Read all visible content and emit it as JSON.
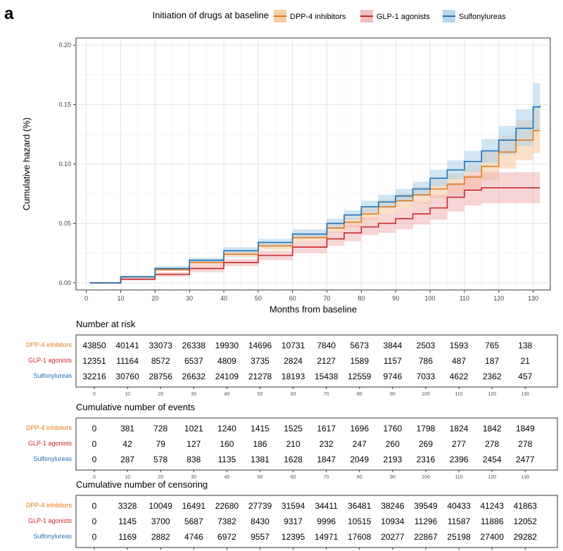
{
  "panel_label": "a",
  "legend": {
    "title": "Initiation of drugs at baseline",
    "items": [
      {
        "name": "DPP-4 inhibitors",
        "line": "#e07b1a",
        "band": "#f5c79a"
      },
      {
        "name": "GLP-1 agonists",
        "line": "#c8282b",
        "band": "#f0b3b3"
      },
      {
        "name": "Sulfonylureas",
        "line": "#1f6fb4",
        "band": "#a9cfeb"
      }
    ]
  },
  "chart_data": {
    "type": "line",
    "xlabel": "Months from baseline",
    "ylabel": "Cumulative hazard (%)",
    "xlim": [
      -3,
      135
    ],
    "ylim": [
      -0.006,
      0.206
    ],
    "x_ticks": [
      0,
      10,
      20,
      30,
      40,
      50,
      60,
      70,
      80,
      90,
      100,
      110,
      120,
      130
    ],
    "y_ticks": [
      0.0,
      0.05,
      0.1,
      0.15,
      0.2
    ],
    "y_tick_labels": [
      "0.00",
      "0.05",
      "0.10",
      "0.15",
      "0.20"
    ],
    "grid": true,
    "series": [
      {
        "name": "DPP-4 inhibitors",
        "color": "#e07b1a",
        "band_color": "#f5c79a",
        "x": [
          1,
          10,
          20,
          30,
          40,
          50,
          60,
          70,
          75,
          80,
          85,
          90,
          95,
          100,
          105,
          110,
          115,
          120,
          125,
          130,
          132
        ],
        "y": [
          0,
          0.005,
          0.011,
          0.017,
          0.024,
          0.031,
          0.038,
          0.046,
          0.051,
          0.058,
          0.064,
          0.069,
          0.074,
          0.079,
          0.083,
          0.089,
          0.098,
          0.11,
          0.12,
          0.128,
          0.128
        ],
        "lower": [
          0,
          0.004,
          0.01,
          0.015,
          0.022,
          0.028,
          0.035,
          0.042,
          0.047,
          0.053,
          0.058,
          0.063,
          0.067,
          0.071,
          0.074,
          0.079,
          0.086,
          0.096,
          0.103,
          0.109,
          0.109
        ],
        "upper": [
          0,
          0.006,
          0.012,
          0.019,
          0.026,
          0.034,
          0.041,
          0.05,
          0.055,
          0.063,
          0.07,
          0.075,
          0.081,
          0.087,
          0.092,
          0.099,
          0.11,
          0.124,
          0.137,
          0.147,
          0.147
        ]
      },
      {
        "name": "GLP-1 agonists",
        "color": "#c8282b",
        "band_color": "#f0b3b3",
        "x": [
          1,
          10,
          20,
          30,
          40,
          50,
          60,
          70,
          75,
          80,
          85,
          90,
          95,
          100,
          105,
          110,
          115,
          120,
          125,
          130,
          132
        ],
        "y": [
          0,
          0.003,
          0.007,
          0.012,
          0.017,
          0.023,
          0.03,
          0.037,
          0.042,
          0.047,
          0.05,
          0.054,
          0.058,
          0.063,
          0.072,
          0.078,
          0.08,
          0.08,
          0.08,
          0.08,
          0.08
        ],
        "lower": [
          0,
          0.002,
          0.005,
          0.009,
          0.014,
          0.019,
          0.025,
          0.031,
          0.035,
          0.04,
          0.042,
          0.045,
          0.049,
          0.053,
          0.06,
          0.065,
          0.067,
          0.067,
          0.067,
          0.067,
          0.067
        ],
        "upper": [
          0,
          0.004,
          0.009,
          0.015,
          0.02,
          0.027,
          0.035,
          0.043,
          0.049,
          0.055,
          0.058,
          0.063,
          0.068,
          0.074,
          0.084,
          0.091,
          0.093,
          0.093,
          0.093,
          0.093,
          0.093
        ]
      },
      {
        "name": "Sulfonylureas",
        "color": "#1f6fb4",
        "band_color": "#a9cfeb",
        "x": [
          1,
          10,
          20,
          30,
          40,
          50,
          60,
          70,
          75,
          80,
          85,
          90,
          95,
          100,
          105,
          110,
          115,
          120,
          125,
          130,
          132
        ],
        "y": [
          0,
          0.005,
          0.012,
          0.019,
          0.027,
          0.034,
          0.041,
          0.05,
          0.057,
          0.064,
          0.068,
          0.073,
          0.079,
          0.088,
          0.095,
          0.102,
          0.111,
          0.12,
          0.13,
          0.148,
          0.149
        ],
        "lower": [
          0,
          0.004,
          0.011,
          0.017,
          0.025,
          0.031,
          0.038,
          0.046,
          0.053,
          0.059,
          0.063,
          0.068,
          0.073,
          0.081,
          0.087,
          0.093,
          0.101,
          0.108,
          0.115,
          0.128,
          0.128
        ],
        "upper": [
          0,
          0.006,
          0.014,
          0.021,
          0.03,
          0.037,
          0.045,
          0.054,
          0.061,
          0.069,
          0.074,
          0.079,
          0.085,
          0.095,
          0.103,
          0.111,
          0.121,
          0.132,
          0.146,
          0.168,
          0.175
        ]
      }
    ]
  },
  "tables": [
    {
      "title": "Number at risk",
      "rows": [
        {
          "label": "DPP-4 inhibitors",
          "color": "#e07b1a",
          "values": [
            "43850",
            "40141",
            "33073",
            "26338",
            "19930",
            "14696",
            "10731",
            "7840",
            "5673",
            "3844",
            "2503",
            "1593",
            "765",
            "138"
          ]
        },
        {
          "label": "GLP-1 agonists",
          "color": "#c8282b",
          "values": [
            "12351",
            "11164",
            "8572",
            "6537",
            "4809",
            "3735",
            "2824",
            "2127",
            "1589",
            "1157",
            "786",
            "487",
            "187",
            "21"
          ]
        },
        {
          "label": "Sulfonylureas",
          "color": "#1f6fb4",
          "values": [
            "32216",
            "30760",
            "28756",
            "26632",
            "24109",
            "21278",
            "18193",
            "15438",
            "12559",
            "9746",
            "7033",
            "4622",
            "2362",
            "457"
          ]
        }
      ]
    },
    {
      "title": "Cumulative number of events",
      "rows": [
        {
          "label": "DPP-4 inhibitors",
          "color": "#e07b1a",
          "values": [
            "0",
            "381",
            "728",
            "1021",
            "1240",
            "1415",
            "1525",
            "1617",
            "1696",
            "1760",
            "1798",
            "1824",
            "1842",
            "1849"
          ]
        },
        {
          "label": "GLP-1 agonists",
          "color": "#c8282b",
          "values": [
            "0",
            "42",
            "79",
            "127",
            "160",
            "186",
            "210",
            "232",
            "247",
            "260",
            "269",
            "277",
            "278",
            "278"
          ]
        },
        {
          "label": "Sulfonylureas",
          "color": "#1f6fb4",
          "values": [
            "0",
            "287",
            "578",
            "838",
            "1135",
            "1381",
            "1628",
            "1847",
            "2049",
            "2193",
            "2316",
            "2396",
            "2454",
            "2477"
          ]
        }
      ]
    },
    {
      "title": "Cumulative number of censoring",
      "rows": [
        {
          "label": "DPP-4 inhibitors",
          "color": "#e07b1a",
          "values": [
            "0",
            "3328",
            "10049",
            "16491",
            "22680",
            "27739",
            "31594",
            "34411",
            "36481",
            "38246",
            "39549",
            "40433",
            "41243",
            "41863"
          ]
        },
        {
          "label": "GLP-1 agonists",
          "color": "#c8282b",
          "values": [
            "0",
            "1145",
            "3700",
            "5687",
            "7382",
            "8430",
            "9317",
            "9996",
            "10515",
            "10934",
            "11296",
            "11587",
            "11886",
            "12052"
          ]
        },
        {
          "label": "Sulfonylureas",
          "color": "#1f6fb4",
          "values": [
            "0",
            "1169",
            "2882",
            "4746",
            "6972",
            "9557",
            "12395",
            "14971",
            "17608",
            "20277",
            "22867",
            "25198",
            "27400",
            "29282"
          ]
        }
      ]
    }
  ]
}
